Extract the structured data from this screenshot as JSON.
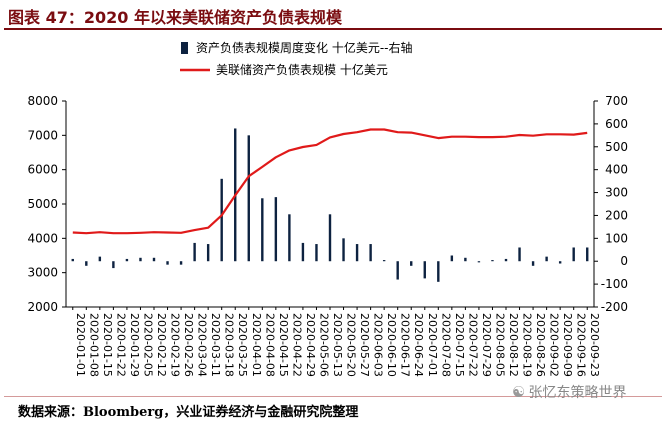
{
  "header": {
    "title": "图表 47：2020 年以来美联储资产负债表规模"
  },
  "footer": {
    "source": "数据来源：Bloomberg，兴业证券经济与金融研究院整理"
  },
  "watermark": {
    "text": "张忆东策略世界",
    "icon": "wechat-icon"
  },
  "colors": {
    "bar": "#0d2240",
    "line": "#e01a1a",
    "title": "#7a0c10"
  },
  "chart_data": {
    "type": "bar+line",
    "legend_position": "top",
    "grid": false,
    "x": [
      "2020-01-01",
      "2020-01-08",
      "2020-01-15",
      "2020-01-22",
      "2020-01-29",
      "2020-02-05",
      "2020-02-12",
      "2020-02-19",
      "2020-02-26",
      "2020-03-04",
      "2020-03-11",
      "2020-03-18",
      "2020-03-25",
      "2020-04-01",
      "2020-04-08",
      "2020-04-15",
      "2020-04-22",
      "2020-04-29",
      "2020-05-06",
      "2020-05-13",
      "2020-05-20",
      "2020-05-27",
      "2020-06-03",
      "2020-06-10",
      "2020-06-17",
      "2020-06-24",
      "2020-07-01",
      "2020-07-08",
      "2020-07-15",
      "2020-07-22",
      "2020-07-29",
      "2020-08-05",
      "2020-08-12",
      "2020-08-19",
      "2020-08-26",
      "2020-09-02",
      "2020-09-09",
      "2020-09-16",
      "2020-09-23"
    ],
    "x_tick_labels": [
      "2020-01-01",
      "2020-01-08",
      "2020-01-15",
      "2020-01-22",
      "2020-01-29",
      "2020-02-05",
      "2020-02-12",
      "2020-02-19",
      "2020-02-26",
      "2020-03-04",
      "2020-03-11",
      "2020-03-18",
      "2020-03-25",
      "2020-04-01",
      "2020-04-08",
      "2020-04-15",
      "2020-04-22",
      "2020-04-29",
      "2020-05-06",
      "2020-05-13",
      "2020-05-20",
      "2020-05-27",
      "2020-06-03",
      "2020-06-10",
      "2020-06-17",
      "2020-06-24",
      "2020-07-01",
      "2020-07-08",
      "2020-07-15",
      "2020-07-22",
      "2020-07-29",
      "2020-08-05",
      "2020-08-12",
      "2020-08-19",
      "2020-08-26",
      "2020-09-02",
      "2020-09-09",
      "2020-09-16",
      "2020-09-23"
    ],
    "series": [
      {
        "name": "资产负债表规模周度变化  十亿美元--右轴",
        "type": "bar",
        "axis": "right",
        "values": [
          10,
          -20,
          20,
          -30,
          10,
          15,
          15,
          -15,
          -15,
          80,
          75,
          360,
          580,
          550,
          275,
          280,
          205,
          80,
          75,
          205,
          100,
          75,
          75,
          5,
          -80,
          -20,
          -75,
          -90,
          25,
          15,
          -5,
          5,
          10,
          60,
          -20,
          20,
          -10,
          60,
          60
        ]
      },
      {
        "name": "美联储资产负债表规模  十亿美元",
        "type": "line",
        "axis": "left",
        "values": [
          4170,
          4150,
          4180,
          4150,
          4150,
          4160,
          4180,
          4170,
          4160,
          4240,
          4310,
          4670,
          5250,
          5810,
          6080,
          6360,
          6560,
          6660,
          6720,
          6940,
          7040,
          7090,
          7170,
          7170,
          7090,
          7080,
          7000,
          6920,
          6960,
          6960,
          6950,
          6950,
          6960,
          7010,
          6990,
          7030,
          7030,
          7020,
          7070
        ]
      }
    ],
    "y_left": {
      "ylim": [
        2000,
        8000
      ],
      "ticks": [
        2000,
        3000,
        4000,
        5000,
        6000,
        7000,
        8000
      ],
      "tick_labels": [
        "2000",
        "3000",
        "4000",
        "5000",
        "6000",
        "7000",
        "8000"
      ]
    },
    "y_right": {
      "ylim": [
        -200,
        700
      ],
      "ticks": [
        -200,
        -100,
        0,
        100,
        200,
        300,
        400,
        500,
        600,
        700
      ],
      "tick_labels": [
        "-200",
        "-100",
        "0",
        "100",
        "200",
        "300",
        "400",
        "500",
        "600",
        "700"
      ]
    },
    "xlabel": "",
    "ylabel": ""
  }
}
